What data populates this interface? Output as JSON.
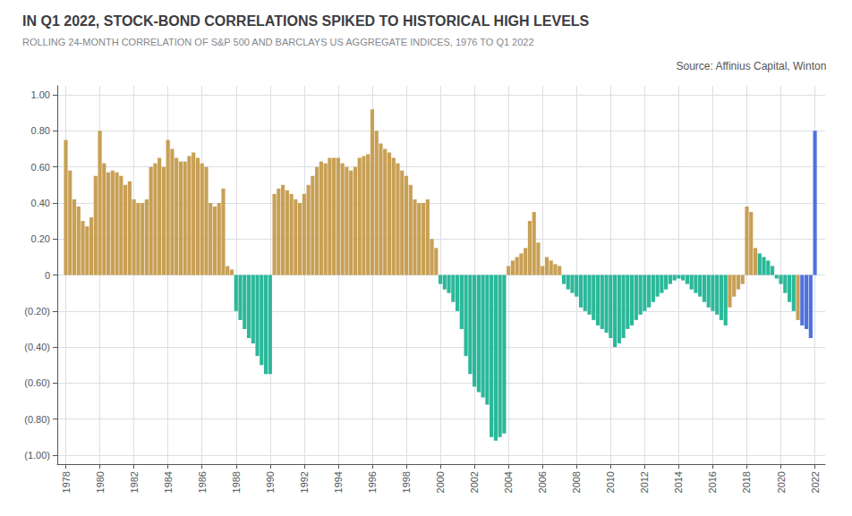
{
  "chart_data": {
    "type": "bar",
    "title": "IN Q1 2022, STOCK-BOND CORRELATIONS SPIKED TO HISTORICAL HIGH LEVELS",
    "subtitle": "ROLLING 24-MONTH CORRELATION OF S&P 500 AND BARCLAYS US AGGREGATE INDICES, 1976 TO Q1 2022",
    "annotations": [
      "Source: Affinius Capital, Winton"
    ],
    "x": [
      1978.0,
      1978.25,
      1978.5,
      1978.75,
      1979.0,
      1979.25,
      1979.5,
      1979.75,
      1980.0,
      1980.25,
      1980.5,
      1980.75,
      1981.0,
      1981.25,
      1981.5,
      1981.75,
      1982.0,
      1982.25,
      1982.5,
      1982.75,
      1983.0,
      1983.25,
      1983.5,
      1983.75,
      1984.0,
      1984.25,
      1984.5,
      1984.75,
      1985.0,
      1985.25,
      1985.5,
      1985.75,
      1986.0,
      1986.25,
      1986.5,
      1986.75,
      1987.0,
      1987.25,
      1987.5,
      1987.75,
      1988.0,
      1988.25,
      1988.5,
      1988.75,
      1989.0,
      1989.25,
      1989.5,
      1989.75,
      1990.0,
      1990.25,
      1990.5,
      1990.75,
      1991.0,
      1991.25,
      1991.5,
      1991.75,
      1992.0,
      1992.25,
      1992.5,
      1992.75,
      1993.0,
      1993.25,
      1993.5,
      1993.75,
      1994.0,
      1994.25,
      1994.5,
      1994.75,
      1995.0,
      1995.25,
      1995.5,
      1995.75,
      1996.0,
      1996.25,
      1996.5,
      1996.75,
      1997.0,
      1997.25,
      1997.5,
      1997.75,
      1998.0,
      1998.25,
      1998.5,
      1998.75,
      1999.0,
      1999.25,
      1999.5,
      1999.75,
      2000.0,
      2000.25,
      2000.5,
      2000.75,
      2001.0,
      2001.25,
      2001.5,
      2001.75,
      2002.0,
      2002.25,
      2002.5,
      2002.75,
      2003.0,
      2003.25,
      2003.5,
      2003.75,
      2004.0,
      2004.25,
      2004.5,
      2004.75,
      2005.0,
      2005.25,
      2005.5,
      2005.75,
      2006.0,
      2006.25,
      2006.5,
      2006.75,
      2007.0,
      2007.25,
      2007.5,
      2007.75,
      2008.0,
      2008.25,
      2008.5,
      2008.75,
      2009.0,
      2009.25,
      2009.5,
      2009.75,
      2010.0,
      2010.25,
      2010.5,
      2010.75,
      2011.0,
      2011.25,
      2011.5,
      2011.75,
      2012.0,
      2012.25,
      2012.5,
      2012.75,
      2013.0,
      2013.25,
      2013.5,
      2013.75,
      2014.0,
      2014.25,
      2014.5,
      2014.75,
      2015.0,
      2015.25,
      2015.5,
      2015.75,
      2016.0,
      2016.25,
      2016.5,
      2016.75,
      2017.0,
      2017.25,
      2017.5,
      2017.75,
      2018.0,
      2018.25,
      2018.5,
      2018.75,
      2019.0,
      2019.25,
      2019.5,
      2019.75,
      2020.0,
      2020.25,
      2020.5,
      2020.75,
      2021.0,
      2021.25,
      2021.5,
      2021.75,
      2022.0
    ],
    "values": [
      0.75,
      0.58,
      0.42,
      0.38,
      0.3,
      0.27,
      0.32,
      0.55,
      0.8,
      0.62,
      0.57,
      0.58,
      0.57,
      0.55,
      0.5,
      0.52,
      0.42,
      0.4,
      0.4,
      0.42,
      0.6,
      0.62,
      0.65,
      0.6,
      0.75,
      0.7,
      0.65,
      0.63,
      0.63,
      0.66,
      0.68,
      0.65,
      0.62,
      0.6,
      0.4,
      0.38,
      0.4,
      0.48,
      0.05,
      0.03,
      -0.2,
      -0.25,
      -0.3,
      -0.35,
      -0.38,
      -0.45,
      -0.5,
      -0.55,
      -0.55,
      0.45,
      0.48,
      0.5,
      0.47,
      0.45,
      0.42,
      0.4,
      0.45,
      0.5,
      0.55,
      0.6,
      0.63,
      0.62,
      0.65,
      0.65,
      0.65,
      0.62,
      0.6,
      0.58,
      0.6,
      0.65,
      0.66,
      0.67,
      0.92,
      0.8,
      0.73,
      0.7,
      0.68,
      0.65,
      0.62,
      0.58,
      0.55,
      0.5,
      0.42,
      0.4,
      0.4,
      0.42,
      0.2,
      0.15,
      -0.05,
      -0.08,
      -0.1,
      -0.15,
      -0.2,
      -0.3,
      -0.45,
      -0.55,
      -0.62,
      -0.65,
      -0.68,
      -0.72,
      -0.9,
      -0.92,
      -0.9,
      -0.88,
      0.05,
      0.08,
      0.1,
      0.12,
      0.15,
      0.3,
      0.35,
      0.18,
      0.05,
      0.1,
      0.08,
      0.06,
      0.05,
      -0.05,
      -0.08,
      -0.1,
      -0.12,
      -0.18,
      -0.2,
      -0.22,
      -0.25,
      -0.28,
      -0.3,
      -0.32,
      -0.35,
      -0.4,
      -0.38,
      -0.35,
      -0.3,
      -0.28,
      -0.25,
      -0.22,
      -0.2,
      -0.18,
      -0.15,
      -0.12,
      -0.1,
      -0.08,
      -0.05,
      -0.03,
      -0.02,
      -0.03,
      -0.05,
      -0.08,
      -0.1,
      -0.12,
      -0.15,
      -0.18,
      -0.2,
      -0.22,
      -0.25,
      -0.28,
      -0.18,
      -0.12,
      -0.08,
      -0.05,
      0.38,
      0.35,
      0.15,
      0.12,
      0.1,
      0.08,
      0.05,
      -0.02,
      -0.05,
      -0.1,
      -0.15,
      -0.2,
      -0.25,
      -0.28,
      -0.3,
      -0.35,
      0.8
    ],
    "colors": [
      "#c8a055",
      "#c8a055",
      "#c8a055",
      "#c8a055",
      "#c8a055",
      "#c8a055",
      "#c8a055",
      "#c8a055",
      "#c8a055",
      "#c8a055",
      "#c8a055",
      "#c8a055",
      "#c8a055",
      "#c8a055",
      "#c8a055",
      "#c8a055",
      "#c8a055",
      "#c8a055",
      "#c8a055",
      "#c8a055",
      "#c8a055",
      "#c8a055",
      "#c8a055",
      "#c8a055",
      "#c8a055",
      "#c8a055",
      "#c8a055",
      "#c8a055",
      "#c8a055",
      "#c8a055",
      "#c8a055",
      "#c8a055",
      "#c8a055",
      "#c8a055",
      "#c8a055",
      "#c8a055",
      "#c8a055",
      "#c8a055",
      "#c8a055",
      "#c8a055",
      "#2bb89a",
      "#2bb89a",
      "#2bb89a",
      "#2bb89a",
      "#2bb89a",
      "#2bb89a",
      "#2bb89a",
      "#2bb89a",
      "#2bb89a",
      "#c8a055",
      "#c8a055",
      "#c8a055",
      "#c8a055",
      "#c8a055",
      "#c8a055",
      "#c8a055",
      "#c8a055",
      "#c8a055",
      "#c8a055",
      "#c8a055",
      "#c8a055",
      "#c8a055",
      "#c8a055",
      "#c8a055",
      "#c8a055",
      "#c8a055",
      "#c8a055",
      "#c8a055",
      "#c8a055",
      "#c8a055",
      "#c8a055",
      "#c8a055",
      "#c8a055",
      "#c8a055",
      "#c8a055",
      "#c8a055",
      "#c8a055",
      "#c8a055",
      "#c8a055",
      "#c8a055",
      "#c8a055",
      "#c8a055",
      "#c8a055",
      "#c8a055",
      "#c8a055",
      "#c8a055",
      "#c8a055",
      "#c8a055",
      "#2bb89a",
      "#2bb89a",
      "#2bb89a",
      "#2bb89a",
      "#2bb89a",
      "#2bb89a",
      "#2bb89a",
      "#2bb89a",
      "#2bb89a",
      "#2bb89a",
      "#2bb89a",
      "#2bb89a",
      "#2bb89a",
      "#2bb89a",
      "#2bb89a",
      "#2bb89a",
      "#c8a055",
      "#c8a055",
      "#c8a055",
      "#c8a055",
      "#c8a055",
      "#c8a055",
      "#c8a055",
      "#c8a055",
      "#c8a055",
      "#c8a055",
      "#c8a055",
      "#c8a055",
      "#c8a055",
      "#2bb89a",
      "#2bb89a",
      "#2bb89a",
      "#2bb89a",
      "#2bb89a",
      "#2bb89a",
      "#2bb89a",
      "#2bb89a",
      "#2bb89a",
      "#2bb89a",
      "#2bb89a",
      "#2bb89a",
      "#2bb89a",
      "#2bb89a",
      "#2bb89a",
      "#2bb89a",
      "#2bb89a",
      "#2bb89a",
      "#2bb89a",
      "#2bb89a",
      "#2bb89a",
      "#2bb89a",
      "#2bb89a",
      "#2bb89a",
      "#2bb89a",
      "#2bb89a",
      "#2bb89a",
      "#2bb89a",
      "#2bb89a",
      "#2bb89a",
      "#2bb89a",
      "#2bb89a",
      "#2bb89a",
      "#2bb89a",
      "#2bb89a",
      "#2bb89a",
      "#2bb89a",
      "#2bb89a",
      "#2bb89a",
      "#c8a055",
      "#c8a055",
      "#c8a055",
      "#c8a055",
      "#c8a055",
      "#c8a055",
      "#c8a055",
      "#2bb89a",
      "#2bb89a",
      "#2bb89a",
      "#2bb89a",
      "#2bb89a",
      "#2bb89a",
      "#2bb89a",
      "#2bb89a",
      "#2bb89a",
      "#c8a055"
    ],
    "xlim": [
      1977.5,
      2022.6
    ],
    "xticks": [
      1978,
      1980,
      1982,
      1984,
      1986,
      1988,
      1990,
      1992,
      1994,
      1996,
      1998,
      2000,
      2002,
      2004,
      2006,
      2008,
      2010,
      2012,
      2014,
      2016,
      2018,
      2020,
      2022
    ],
    "ylim": [
      -1.05,
      1.05
    ],
    "yticks": [
      {
        "value": -1.0,
        "label": "(1.00)"
      },
      {
        "value": -0.8,
        "label": "(0.80)"
      },
      {
        "value": -0.6,
        "label": "(0.60)"
      },
      {
        "value": -0.4,
        "label": "(0.40)"
      },
      {
        "value": -0.2,
        "label": "(0.20)"
      },
      0,
      {
        "value": 0.2,
        "label": "0.20"
      },
      {
        "value": 0.4,
        "label": "0.40"
      },
      {
        "value": 0.6,
        "label": "0.60"
      },
      {
        "value": 0.8,
        "label": "0.80"
      },
      {
        "value": 1.0,
        "label": "1.00"
      }
    ],
    "grid": true
  }
}
